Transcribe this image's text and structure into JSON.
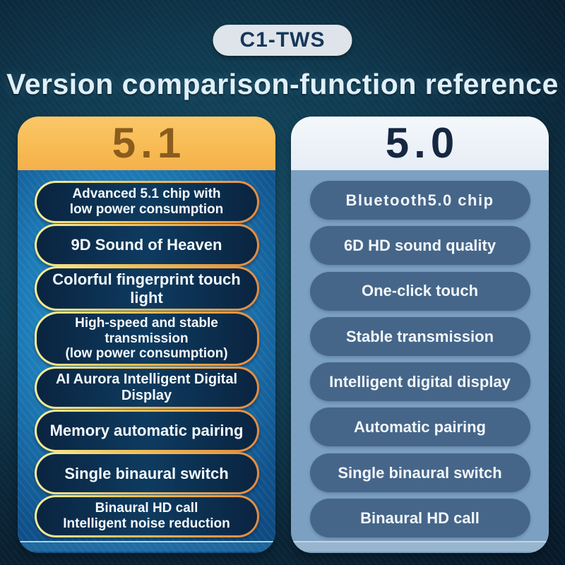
{
  "badge": {
    "label": "C1-TWS"
  },
  "title": "Version comparison-function reference",
  "columns": {
    "left": {
      "version": "5.1",
      "items": [
        "Advanced 5.1 chip with\nlow power consumption",
        "9D Sound of Heaven",
        "Colorful fingerprint touch light",
        "High-speed and stable transmission\n(low power consumption)",
        "AI Aurora Intelligent Digital Display",
        "Memory automatic pairing",
        "Single binaural switch",
        "Binaural HD call\nIntelligent noise reduction"
      ]
    },
    "right": {
      "version": "5.0",
      "items": [
        "Bluetooth5.0 chip",
        "6D HD sound quality",
        "One-click touch",
        "Stable transmission",
        "Intelligent digital display",
        "Automatic pairing",
        "Single binaural switch",
        "Binaural HD call"
      ]
    }
  },
  "colors": {
    "page_background": "#0d2c41",
    "badge_bg": "#dee4e9",
    "badge_text": "#16375c",
    "title_text": "#dff0fb",
    "gold_header": "#f8bc55",
    "version_51_text": "#8a5c1d",
    "left_body_blue": "#2ba3dc",
    "pill_border_gold": "#e8953f",
    "pill_fill_navy": "#0c2c4b",
    "right_header": "#e9f0f7",
    "version_50_text": "#162741",
    "right_body": "#7ba0c1",
    "right_pill": "#466689",
    "pill_text": "#f4fafd"
  }
}
